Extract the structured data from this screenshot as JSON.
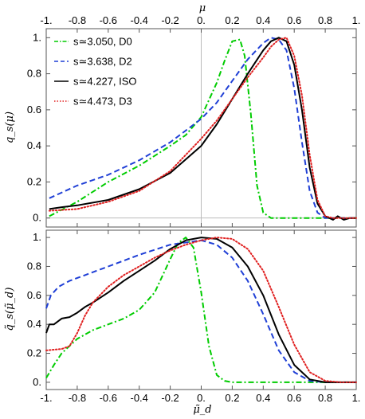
{
  "chart_data": [
    {
      "type": "line",
      "ylabel": "q_s(μ)",
      "top_xlabel": "μ",
      "xlim": [
        -1,
        1
      ],
      "ylim": [
        -0.05,
        1.05
      ],
      "x_ticks": [
        -1,
        -0.8,
        -0.6,
        -0.4,
        -0.2,
        0,
        0.2,
        0.4,
        0.6,
        0.8,
        1
      ],
      "x_tick_labels": [
        "-1.",
        "-0.8",
        "-0.6",
        "-0.4",
        "-0.2",
        "0.",
        "0.2",
        "0.4",
        "0.6",
        "0.8",
        "1."
      ],
      "y_ticks": [
        0,
        0.2,
        0.4,
        0.6,
        0.8,
        1
      ],
      "y_tick_labels": [
        "0.",
        "0.2",
        "0.4",
        "0.6",
        "0.8",
        "1."
      ],
      "legend_position": "top-left",
      "series": [
        {
          "name": "s≃3.050, D0",
          "color": "#00cc00",
          "dash": "dashdot",
          "x": [
            -0.98,
            -0.8,
            -0.6,
            -0.4,
            -0.2,
            -0.1,
            0,
            0.1,
            0.15,
            0.2,
            0.25,
            0.28,
            0.32,
            0.36,
            0.4,
            0.45,
            0.5,
            0.6,
            0.7,
            0.8,
            0.9,
            1
          ],
          "y": [
            0.01,
            0.09,
            0.2,
            0.29,
            0.4,
            0.46,
            0.56,
            0.75,
            0.87,
            0.98,
            0.99,
            0.9,
            0.58,
            0.18,
            0.03,
            0,
            0,
            0,
            0,
            0,
            0,
            0
          ]
        },
        {
          "name": "s≃3.638, D2",
          "color": "#1f3fd6",
          "dash": "dash",
          "x": [
            -0.98,
            -0.8,
            -0.6,
            -0.4,
            -0.2,
            0,
            0.1,
            0.2,
            0.3,
            0.4,
            0.45,
            0.5,
            0.55,
            0.6,
            0.65,
            0.7,
            0.75,
            0.8,
            0.85,
            0.9,
            1
          ],
          "y": [
            0.11,
            0.18,
            0.24,
            0.32,
            0.42,
            0.55,
            0.64,
            0.76,
            0.88,
            0.97,
            1.0,
            0.99,
            0.93,
            0.72,
            0.42,
            0.15,
            0.03,
            0,
            0,
            0,
            0
          ]
        },
        {
          "name": "s≃4.227, ISO",
          "color": "#000000",
          "dash": "solid",
          "x": [
            -0.98,
            -0.9,
            -0.8,
            -0.6,
            -0.4,
            -0.2,
            0,
            0.1,
            0.2,
            0.3,
            0.4,
            0.45,
            0.5,
            0.55,
            0.6,
            0.65,
            0.7,
            0.75,
            0.8,
            0.85,
            0.88,
            0.92,
            0.96,
            1
          ],
          "y": [
            0.05,
            0.06,
            0.07,
            0.1,
            0.16,
            0.25,
            0.4,
            0.52,
            0.66,
            0.8,
            0.93,
            0.98,
            1.0,
            0.98,
            0.85,
            0.6,
            0.28,
            0.08,
            0.01,
            -0.01,
            0.01,
            -0.01,
            0,
            0
          ]
        },
        {
          "name": "s≃4.473, D3",
          "color": "#e02020",
          "dash": "dot",
          "x": [
            -0.98,
            -0.8,
            -0.6,
            -0.4,
            -0.2,
            0,
            0.1,
            0.2,
            0.3,
            0.4,
            0.45,
            0.5,
            0.55,
            0.6,
            0.65,
            0.7,
            0.75,
            0.8,
            0.85,
            0.9,
            1
          ],
          "y": [
            0.04,
            0.05,
            0.09,
            0.15,
            0.26,
            0.44,
            0.54,
            0.66,
            0.78,
            0.89,
            0.95,
            0.99,
            1.0,
            0.9,
            0.68,
            0.35,
            0.1,
            0.01,
            0,
            0,
            0
          ]
        }
      ]
    },
    {
      "type": "line",
      "ylabel": "q̃_s(μ̃_d)",
      "xlabel": "μ̃_d",
      "xlim": [
        -1,
        1
      ],
      "ylim": [
        -0.05,
        1.05
      ],
      "x_ticks": [
        -1,
        -0.8,
        -0.6,
        -0.4,
        -0.2,
        0,
        0.2,
        0.4,
        0.6,
        0.8,
        1
      ],
      "x_tick_labels": [
        "-1.",
        "-0.8",
        "-0.6",
        "-0.4",
        "-0.2",
        "0.",
        "0.2",
        "0.4",
        "0.6",
        "0.8",
        "1."
      ],
      "y_ticks": [
        0,
        0.2,
        0.4,
        0.6,
        0.8,
        1
      ],
      "y_tick_labels": [
        "0.",
        "0.2",
        "0.4",
        "0.6",
        "0.8",
        "1."
      ],
      "series": [
        {
          "name": "s≃3.050, D0",
          "color": "#00cc00",
          "dash": "dashdot",
          "x": [
            -1,
            -0.95,
            -0.9,
            -0.8,
            -0.7,
            -0.6,
            -0.5,
            -0.4,
            -0.3,
            -0.2,
            -0.15,
            -0.1,
            -0.05,
            0,
            0.05,
            0.1,
            0.15,
            0.2,
            0.3,
            0.5,
            1
          ],
          "y": [
            0.03,
            0.12,
            0.2,
            0.3,
            0.36,
            0.4,
            0.44,
            0.5,
            0.62,
            0.85,
            0.96,
            1.0,
            0.93,
            0.62,
            0.25,
            0.05,
            0.01,
            0,
            0,
            0,
            0
          ]
        },
        {
          "name": "s≃3.638, D2",
          "color": "#1f3fd6",
          "dash": "dash",
          "x": [
            -1,
            -0.97,
            -0.92,
            -0.85,
            -0.75,
            -0.6,
            -0.4,
            -0.2,
            0,
            0.1,
            0.2,
            0.3,
            0.4,
            0.5,
            0.6,
            0.7,
            0.8,
            0.9,
            1
          ],
          "y": [
            0.51,
            0.6,
            0.66,
            0.7,
            0.74,
            0.8,
            0.88,
            0.95,
            0.98,
            0.95,
            0.86,
            0.7,
            0.47,
            0.22,
            0.07,
            0.01,
            0,
            0,
            0
          ]
        },
        {
          "name": "s≃4.227, ISO",
          "color": "#000000",
          "dash": "solid",
          "x": [
            -1,
            -0.98,
            -0.95,
            -0.9,
            -0.85,
            -0.8,
            -0.75,
            -0.7,
            -0.6,
            -0.5,
            -0.4,
            -0.3,
            -0.2,
            -0.1,
            0,
            0.1,
            0.2,
            0.3,
            0.4,
            0.5,
            0.6,
            0.7,
            0.8,
            0.9,
            1
          ],
          "y": [
            0.34,
            0.4,
            0.4,
            0.44,
            0.45,
            0.48,
            0.52,
            0.55,
            0.62,
            0.7,
            0.77,
            0.84,
            0.92,
            0.98,
            1.0,
            0.99,
            0.93,
            0.8,
            0.6,
            0.33,
            0.12,
            0.02,
            0,
            0,
            0
          ]
        },
        {
          "name": "s≃4.473, D3",
          "color": "#e02020",
          "dash": "dot",
          "x": [
            -1,
            -0.9,
            -0.85,
            -0.8,
            -0.75,
            -0.7,
            -0.6,
            -0.5,
            -0.4,
            -0.3,
            -0.2,
            -0.1,
            0,
            0.1,
            0.2,
            0.3,
            0.4,
            0.5,
            0.6,
            0.7,
            0.8,
            0.9,
            1
          ],
          "y": [
            0.22,
            0.23,
            0.25,
            0.34,
            0.46,
            0.55,
            0.66,
            0.74,
            0.8,
            0.86,
            0.91,
            0.95,
            0.98,
            1.0,
            0.99,
            0.92,
            0.77,
            0.52,
            0.26,
            0.07,
            0.01,
            0,
            0
          ]
        }
      ]
    }
  ]
}
